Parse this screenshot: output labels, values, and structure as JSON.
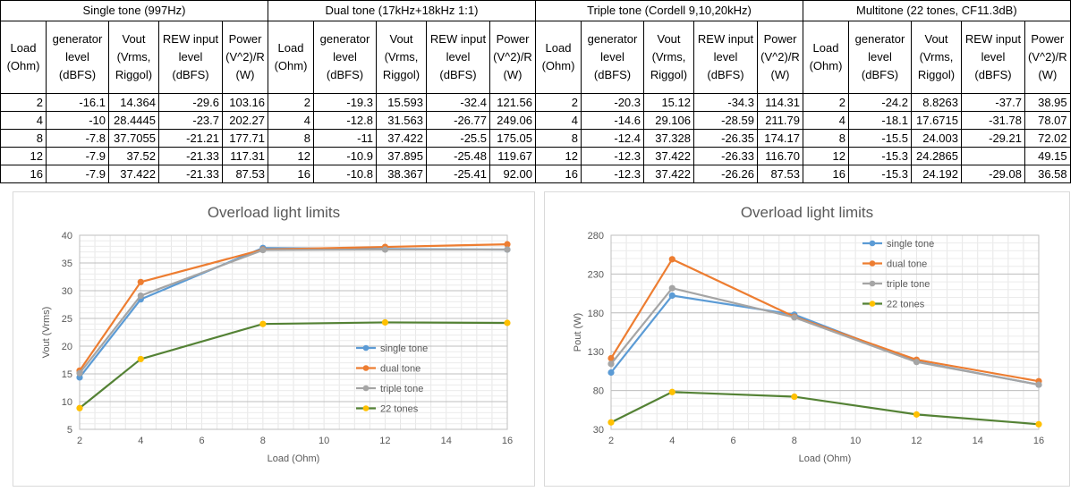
{
  "table": {
    "groups": [
      "Single tone (997Hz)",
      "Dual tone (17kHz+18kHz 1:1)",
      "Triple tone (Cordell 9,10,20kHz)",
      "Multitone (22 tones, CF11.3dB)"
    ],
    "columns": [
      "Load (Ohm)",
      "generator level (dBFS)",
      "Vout (Vrms, Riggol)",
      "REW input level (dBFS)",
      "Power (V^2)/R (W)"
    ],
    "rows": [
      [
        "2",
        "-16.1",
        "14.364",
        "-29.6",
        "103.16",
        "2",
        "-19.3",
        "15.593",
        "-32.4",
        "121.56",
        "2",
        "-20.3",
        "15.12",
        "-34.3",
        "114.31",
        "2",
        "-24.2",
        "8.8263",
        "-37.7",
        "38.95"
      ],
      [
        "4",
        "-10",
        "28.4445",
        "-23.7",
        "202.27",
        "4",
        "-12.8",
        "31.563",
        "-26.77",
        "249.06",
        "4",
        "-14.6",
        "29.106",
        "-28.59",
        "211.79",
        "4",
        "-18.1",
        "17.6715",
        "-31.78",
        "78.07"
      ],
      [
        "8",
        "-7.8",
        "37.7055",
        "-21.21",
        "177.71",
        "8",
        "-11",
        "37.422",
        "-25.5",
        "175.05",
        "8",
        "-12.4",
        "37.328",
        "-26.35",
        "174.17",
        "8",
        "-15.5",
        "24.003",
        "-29.21",
        "72.02"
      ],
      [
        "12",
        "-7.9",
        "37.52",
        "-21.33",
        "117.31",
        "12",
        "-10.9",
        "37.895",
        "-25.48",
        "119.67",
        "12",
        "-12.3",
        "37.422",
        "-26.33",
        "116.70",
        "12",
        "-15.3",
        "24.2865",
        "",
        "49.15"
      ],
      [
        "16",
        "-7.9",
        "37.422",
        "-21.33",
        "87.53",
        "16",
        "-10.8",
        "38.367",
        "-25.41",
        "92.00",
        "16",
        "-12.3",
        "37.422",
        "-26.26",
        "87.53",
        "16",
        "-15.3",
        "24.192",
        "-29.08",
        "36.58"
      ]
    ]
  },
  "chart_data": [
    {
      "type": "line",
      "title": "Overload light limits",
      "xlabel": "Load (Ohm)",
      "ylabel": "Vout (Vrms)",
      "xlim": [
        2,
        16
      ],
      "xticks": [
        2,
        4,
        6,
        8,
        10,
        12,
        14,
        16
      ],
      "ylim": [
        5,
        40
      ],
      "yticks": [
        5,
        10,
        15,
        20,
        25,
        30,
        35,
        40
      ],
      "grid": "horizontal",
      "legend": "right-middle",
      "x": [
        2,
        4,
        8,
        12,
        16
      ],
      "series": [
        {
          "name": "single tone",
          "line": "#5b9bd5",
          "marker": "#5b9bd5",
          "values": [
            14.364,
            28.4445,
            37.7055,
            37.52,
            37.422
          ]
        },
        {
          "name": "dual tone",
          "line": "#ed7d31",
          "marker": "#ed7d31",
          "values": [
            15.593,
            31.563,
            37.422,
            37.895,
            38.367
          ]
        },
        {
          "name": "triple tone",
          "line": "#a5a5a5",
          "marker": "#a5a5a5",
          "values": [
            15.12,
            29.106,
            37.328,
            37.422,
            37.422
          ]
        },
        {
          "name": "22 tones",
          "line": "#548235",
          "marker": "#ffc000",
          "values": [
            8.8263,
            17.6715,
            24.003,
            24.2865,
            24.192
          ]
        }
      ]
    },
    {
      "type": "line",
      "title": "Overload light limits",
      "xlabel": "Load (Ohm)",
      "ylabel": "Pout (W)",
      "xlim": [
        2,
        16
      ],
      "xticks": [
        2,
        4,
        6,
        8,
        10,
        12,
        14,
        16
      ],
      "ylim": [
        30,
        280
      ],
      "yticks": [
        30,
        80,
        130,
        180,
        230,
        280
      ],
      "grid": "horizontal",
      "legend": "top-right",
      "x": [
        2,
        4,
        8,
        12,
        16
      ],
      "series": [
        {
          "name": "single tone",
          "line": "#5b9bd5",
          "marker": "#5b9bd5",
          "values": [
            103.16,
            202.27,
            177.71,
            117.31,
            87.53
          ]
        },
        {
          "name": "dual tone",
          "line": "#ed7d31",
          "marker": "#ed7d31",
          "values": [
            121.56,
            249.06,
            175.05,
            119.67,
            92.0
          ]
        },
        {
          "name": "triple tone",
          "line": "#a5a5a5",
          "marker": "#a5a5a5",
          "values": [
            114.31,
            211.79,
            174.17,
            116.7,
            87.53
          ]
        },
        {
          "name": "22 tones",
          "line": "#548235",
          "marker": "#ffc000",
          "values": [
            38.95,
            78.07,
            72.02,
            49.15,
            36.58
          ]
        }
      ]
    }
  ]
}
